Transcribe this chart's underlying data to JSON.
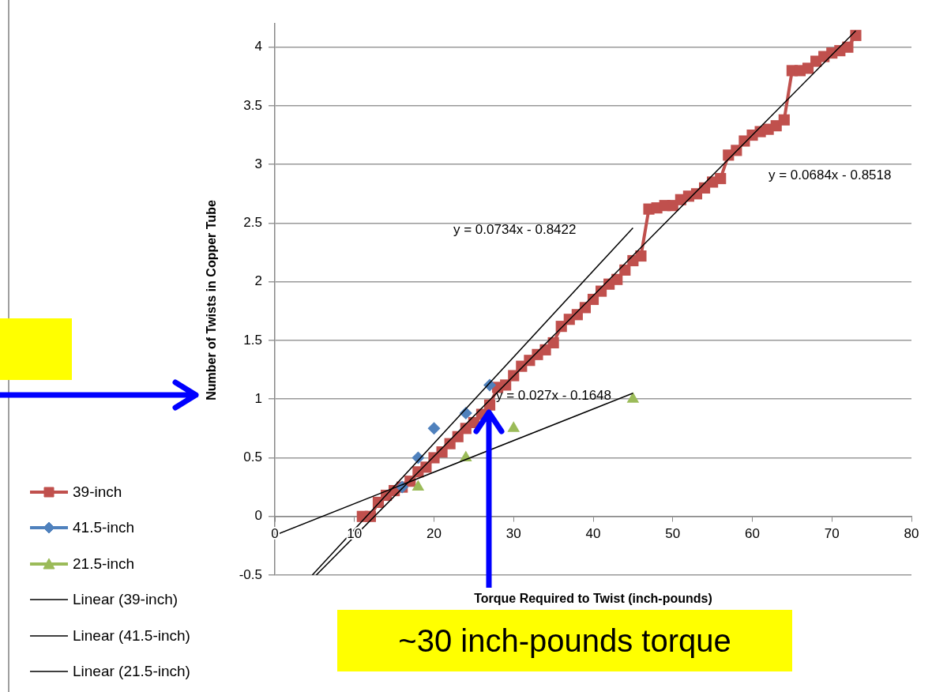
{
  "chart_data": {
    "type": "scatter",
    "xlabel": "Torque Required to Twist  (inch-pounds)",
    "ylabel": "Number of Twists in Copper Tube",
    "xlim": [
      0,
      80
    ],
    "xticks": [
      0,
      10,
      20,
      30,
      40,
      50,
      60,
      70,
      80
    ],
    "ylim": [
      -0.5,
      4.2
    ],
    "yticks": [
      -0.5,
      0,
      0.5,
      1,
      1.5,
      2,
      2.5,
      3,
      3.5,
      4
    ],
    "grid": "y",
    "legend": "left",
    "series": [
      {
        "name": "39-inch",
        "type": "line",
        "marker": "square",
        "color": "#c0504d",
        "x": [
          11,
          12,
          13,
          14,
          15,
          16,
          17,
          18,
          19,
          20,
          21,
          22,
          23,
          24,
          25,
          26,
          27,
          28,
          29,
          30,
          31,
          32,
          33,
          34,
          35,
          36,
          37,
          38,
          39,
          40,
          41,
          42,
          43,
          44,
          45,
          46,
          47,
          48,
          49,
          50,
          51,
          52,
          53,
          54,
          55,
          56,
          57,
          58,
          59,
          60,
          61,
          62,
          63,
          64,
          65,
          66,
          67,
          68,
          69,
          70,
          71,
          72,
          73
        ],
        "values": [
          0,
          0,
          0.12,
          0.18,
          0.22,
          0.25,
          0.3,
          0.38,
          0.42,
          0.5,
          0.55,
          0.62,
          0.68,
          0.75,
          0.8,
          0.87,
          0.95,
          1.1,
          1.12,
          1.2,
          1.28,
          1.33,
          1.38,
          1.42,
          1.48,
          1.62,
          1.68,
          1.72,
          1.78,
          1.85,
          1.92,
          1.98,
          2.02,
          2.1,
          2.18,
          2.22,
          2.62,
          2.63,
          2.65,
          2.65,
          2.7,
          2.73,
          2.75,
          2.8,
          2.85,
          2.88,
          3.08,
          3.12,
          3.2,
          3.25,
          3.28,
          3.3,
          3.33,
          3.38,
          3.8,
          3.8,
          3.82,
          3.88,
          3.92,
          3.95,
          3.97,
          4.0,
          4.1
        ]
      },
      {
        "name": "41.5-inch",
        "type": "scatter",
        "marker": "diamond",
        "color": "#4f81bd",
        "x": [
          16,
          18,
          20,
          24,
          27
        ],
        "values": [
          0.25,
          0.5,
          0.75,
          0.88,
          1.12
        ]
      },
      {
        "name": "21.5-inch",
        "type": "scatter",
        "marker": "triangle",
        "color": "#9bbb59",
        "x": [
          18,
          24,
          30,
          45
        ],
        "values": [
          0.25,
          0.5,
          0.75,
          1.0
        ]
      },
      {
        "name": "Linear (39-inch)",
        "type": "line",
        "marker": "none",
        "color": "#000000",
        "x": [
          5.2,
          73
        ],
        "values": [
          -0.5,
          4.14
        ]
      },
      {
        "name": "Linear (41.5-inch)",
        "type": "line",
        "marker": "none",
        "color": "#000000",
        "x": [
          4.7,
          45
        ],
        "values": [
          -0.5,
          2.46
        ]
      },
      {
        "name": "Linear (21.5-inch)",
        "type": "line",
        "marker": "none",
        "color": "#000000",
        "x": [
          0,
          45
        ],
        "values": [
          -0.16,
          1.05
        ]
      }
    ],
    "annotations": [
      "y = 0.0684x - 0.8518",
      "y = 0.0734x - 0.8422",
      "y = 0.027x - 0.1648",
      "~30 inch-pounds torque"
    ]
  }
}
